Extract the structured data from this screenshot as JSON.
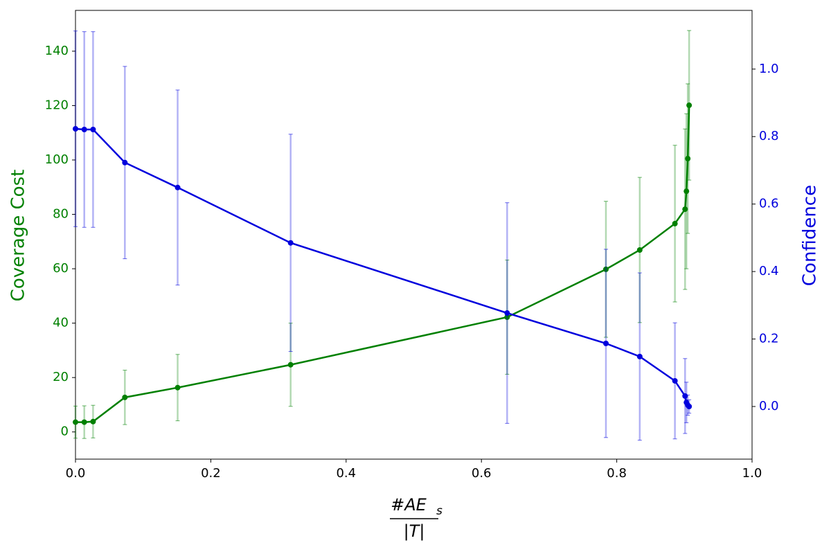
{
  "chart_data": {
    "type": "line",
    "x_label": {
      "numerator": "#AE",
      "subscript": "s",
      "denominator": "|T|"
    },
    "y_label": "Coverage Cost",
    "y2_label": "Confidence",
    "x": [
      0,
      0.013,
      0.026,
      0.073,
      0.151,
      0.318,
      0.638,
      0.784,
      0.834,
      0.886,
      0.901,
      0.903,
      0.905,
      0.907
    ],
    "series": [
      {
        "color": "#008000",
        "axis": "y",
        "values": [
          3.6,
          3.6,
          3.8,
          12.7,
          16.3,
          24.7,
          42.2,
          59.8,
          66.9,
          76.6,
          81.9,
          88.5,
          100.5,
          120.1
        ],
        "errors": [
          5.9,
          6,
          6,
          10,
          12.2,
          15.3,
          21,
          25,
          26.7,
          28.8,
          29.5,
          28.5,
          27.5,
          27.5
        ]
      },
      {
        "color": "#0000dd",
        "axis": "y2",
        "values": [
          0.823,
          0.821,
          0.821,
          0.723,
          0.649,
          0.485,
          0.277,
          0.187,
          0.148,
          0.076,
          0.031,
          0.012,
          0.004,
          0
        ],
        "errors": [
          0.29,
          0.29,
          0.29,
          0.285,
          0.289,
          0.322,
          0.327,
          0.279,
          0.248,
          0.172,
          0.111,
          0.06,
          0.03,
          0.02
        ]
      }
    ],
    "xlim": [
      0,
      1
    ],
    "xticks": [
      {
        "value": 0,
        "label": "0.0"
      },
      {
        "value": 0.2,
        "label": "0.2"
      },
      {
        "value": 0.4,
        "label": "0.4"
      },
      {
        "value": 0.6,
        "label": "0.6"
      },
      {
        "value": 0.8,
        "label": "0.8"
      },
      {
        "value": 1,
        "label": "1.0"
      }
    ],
    "ylim": [
      -10,
      155
    ],
    "yticks": [
      0,
      20,
      40,
      60,
      80,
      100,
      120,
      140
    ],
    "y2lim": [
      -0.156,
      1.174
    ],
    "y2ticks": [
      {
        "value": 0,
        "label": "0.0"
      },
      {
        "value": 0.2,
        "label": "0.2"
      },
      {
        "value": 0.4,
        "label": "0.4"
      },
      {
        "value": 0.6,
        "label": "0.6"
      },
      {
        "value": 0.8,
        "label": "0.8"
      },
      {
        "value": 1,
        "label": "1.0"
      }
    ],
    "grid": false
  }
}
